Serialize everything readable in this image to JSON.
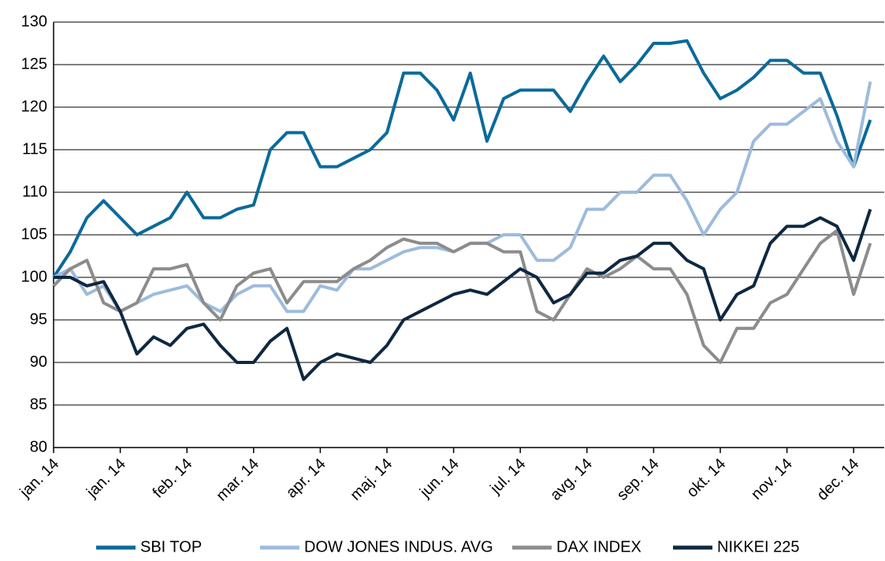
{
  "chart_data": {
    "type": "line",
    "categories": [
      "jan. 14",
      null,
      null,
      null,
      "jan. 14",
      null,
      null,
      null,
      "feb. 14",
      null,
      null,
      null,
      "mar. 14",
      null,
      null,
      null,
      "apr. 14",
      null,
      null,
      null,
      "maj. 14",
      null,
      null,
      null,
      "jun. 14",
      null,
      null,
      null,
      "jul. 14",
      null,
      null,
      null,
      "avg. 14",
      null,
      null,
      null,
      "sep. 14",
      null,
      null,
      null,
      "okt. 14",
      null,
      null,
      null,
      "nov. 14",
      null,
      null,
      null,
      "dec. 14",
      null
    ],
    "series": [
      {
        "name": "SBI TOP",
        "color": "#0b6a9a",
        "values": [
          100,
          103,
          107,
          109,
          107,
          105,
          106,
          107,
          110,
          107,
          107,
          108,
          108.5,
          115,
          117,
          117,
          113,
          113,
          114,
          115,
          117,
          124,
          124,
          122,
          118.5,
          124,
          116,
          121,
          122,
          122,
          122,
          119.5,
          123,
          126,
          123,
          125,
          127.5,
          127.5,
          127.8,
          124,
          121,
          122,
          123.5,
          125.5,
          125.5,
          124,
          124,
          119,
          113,
          118.5
        ]
      },
      {
        "name": "DOW JONES INDUS. AVG",
        "color": "#9dbbdc",
        "values": [
          100,
          101,
          98,
          99,
          96,
          97,
          98,
          98.5,
          99,
          97,
          96,
          98,
          99,
          99,
          96,
          96,
          99,
          98.5,
          101,
          101,
          102,
          103,
          103.5,
          103.5,
          103,
          104,
          104,
          105,
          105,
          102,
          102,
          103.5,
          108,
          108,
          110,
          110,
          112,
          112,
          109,
          105,
          108,
          110,
          116,
          118,
          118,
          119.5,
          121,
          116,
          113,
          123
        ]
      },
      {
        "name": "DAX INDEX",
        "color": "#8c8c8c",
        "values": [
          99,
          101,
          102,
          97,
          96,
          97,
          101,
          101,
          101.5,
          97,
          95,
          99,
          100.5,
          101,
          97,
          99.5,
          99.5,
          99.5,
          101,
          102,
          103.5,
          104.5,
          104,
          104,
          103,
          104,
          104,
          103,
          103,
          96,
          95,
          98,
          101,
          100,
          101,
          102.5,
          101,
          101,
          98,
          92,
          90,
          94,
          94,
          97,
          98,
          101,
          104,
          105.5,
          98,
          104
        ]
      },
      {
        "name": "NIKKEI 225",
        "color": "#0e2841",
        "values": [
          100,
          100,
          99,
          99.5,
          96,
          91,
          93,
          92,
          94,
          94.5,
          92,
          90,
          90,
          92.5,
          94,
          88,
          90,
          91,
          90.5,
          90,
          92,
          95,
          96,
          97,
          98,
          98.5,
          98,
          99.5,
          101,
          100,
          97,
          98,
          100.5,
          100.5,
          102,
          102.5,
          104,
          104,
          102,
          101,
          95,
          98,
          99,
          104,
          106,
          106,
          107,
          106,
          102,
          108
        ]
      }
    ],
    "ylim": [
      80,
      130
    ],
    "yticks": [
      80,
      85,
      90,
      95,
      100,
      105,
      110,
      115,
      120,
      125,
      130
    ],
    "grid": true,
    "legend": "bottom"
  }
}
